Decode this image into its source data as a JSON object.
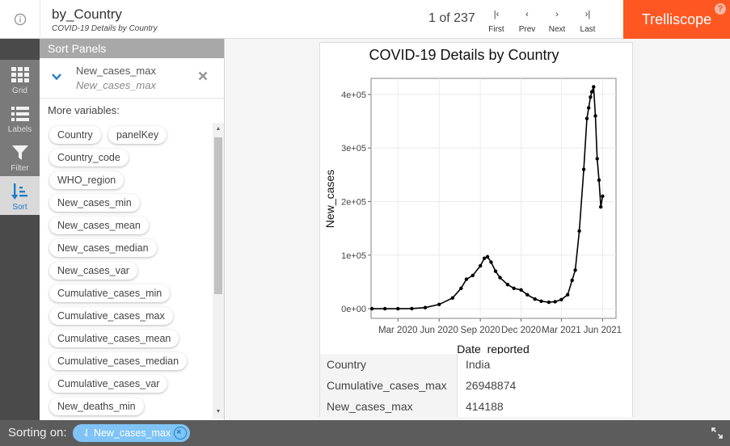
{
  "header": {
    "title": "by_Country",
    "subtitle": "COVID-19 Details by Country",
    "pager": "1 of 237",
    "nav": [
      {
        "label": "First",
        "glyph": "|‹"
      },
      {
        "label": "Prev",
        "glyph": "‹"
      },
      {
        "label": "Next",
        "glyph": "›"
      },
      {
        "label": "Last",
        "glyph": "›|"
      }
    ],
    "brand": "Trelliscope",
    "help": "?"
  },
  "rail": [
    {
      "label": "Grid",
      "icon": "grid-icon"
    },
    {
      "label": "Labels",
      "icon": "list-icon"
    },
    {
      "label": "Filter",
      "icon": "filter-icon"
    },
    {
      "label": "Sort",
      "icon": "sort-icon"
    }
  ],
  "sort_panel": {
    "heading": "Sort Panels",
    "active_sort": {
      "name": "New_cases_max",
      "description": "New_cases_max"
    },
    "more_label": "More variables:",
    "variables": [
      "Country",
      "panelKey",
      "Country_code",
      "WHO_region",
      "New_cases_min",
      "New_cases_mean",
      "New_cases_median",
      "New_cases_var",
      "Cumulative_cases_min",
      "Cumulative_cases_max",
      "Cumulative_cases_mean",
      "Cumulative_cases_median",
      "Cumulative_cases_var",
      "New_deaths_min"
    ]
  },
  "panel": {
    "cognostics": [
      {
        "key": "Country",
        "value": "India"
      },
      {
        "key": "Cumulative_cases_max",
        "value": "26948874"
      },
      {
        "key": "New_cases_max",
        "value": "414188"
      }
    ]
  },
  "chart_data": {
    "type": "line",
    "title": "COVID-19 Details by Country",
    "xlabel": "Date_reported",
    "ylabel": "New_cases",
    "x_ticks": [
      "Mar 2020",
      "Jun 2020",
      "Sep 2020",
      "Dec 2020",
      "Mar 2021",
      "Jun 2021"
    ],
    "y_ticks": [
      "0e+00",
      "1e+05",
      "2e+05",
      "3e+05",
      "4e+05"
    ],
    "ylim": [
      -18000,
      430000
    ],
    "xlim": [
      "2020-01-01",
      "2021-07-01"
    ],
    "grid": true,
    "series": [
      {
        "x": [
          "2020-01-03",
          "2020-02-01",
          "2020-03-01",
          "2020-04-01",
          "2020-05-01",
          "2020-06-01",
          "2020-07-01",
          "2020-07-20",
          "2020-08-01",
          "2020-08-15",
          "2020-09-01",
          "2020-09-10",
          "2020-09-17",
          "2020-09-25",
          "2020-10-05",
          "2020-10-15",
          "2020-11-01",
          "2020-11-15",
          "2020-12-01",
          "2020-12-15",
          "2021-01-01",
          "2021-01-15",
          "2021-02-01",
          "2021-02-15",
          "2021-03-01",
          "2021-03-15",
          "2021-03-25",
          "2021-04-01",
          "2021-04-10",
          "2021-04-20",
          "2021-04-27",
          "2021-05-01",
          "2021-05-05",
          "2021-05-08",
          "2021-05-12",
          "2021-05-16",
          "2021-05-20",
          "2021-05-24",
          "2021-05-28",
          "2021-06-01"
        ],
        "y": [
          0,
          0,
          0,
          200,
          2000,
          8000,
          20000,
          38000,
          55000,
          62000,
          80000,
          94000,
          97000,
          87000,
          70000,
          58000,
          45000,
          38000,
          35000,
          26000,
          18000,
          14000,
          12000,
          13000,
          17000,
          26000,
          53000,
          72000,
          145000,
          260000,
          355000,
          375000,
          395000,
          405000,
          414188,
          360000,
          280000,
          240000,
          190000,
          210000
        ]
      }
    ]
  }
}
